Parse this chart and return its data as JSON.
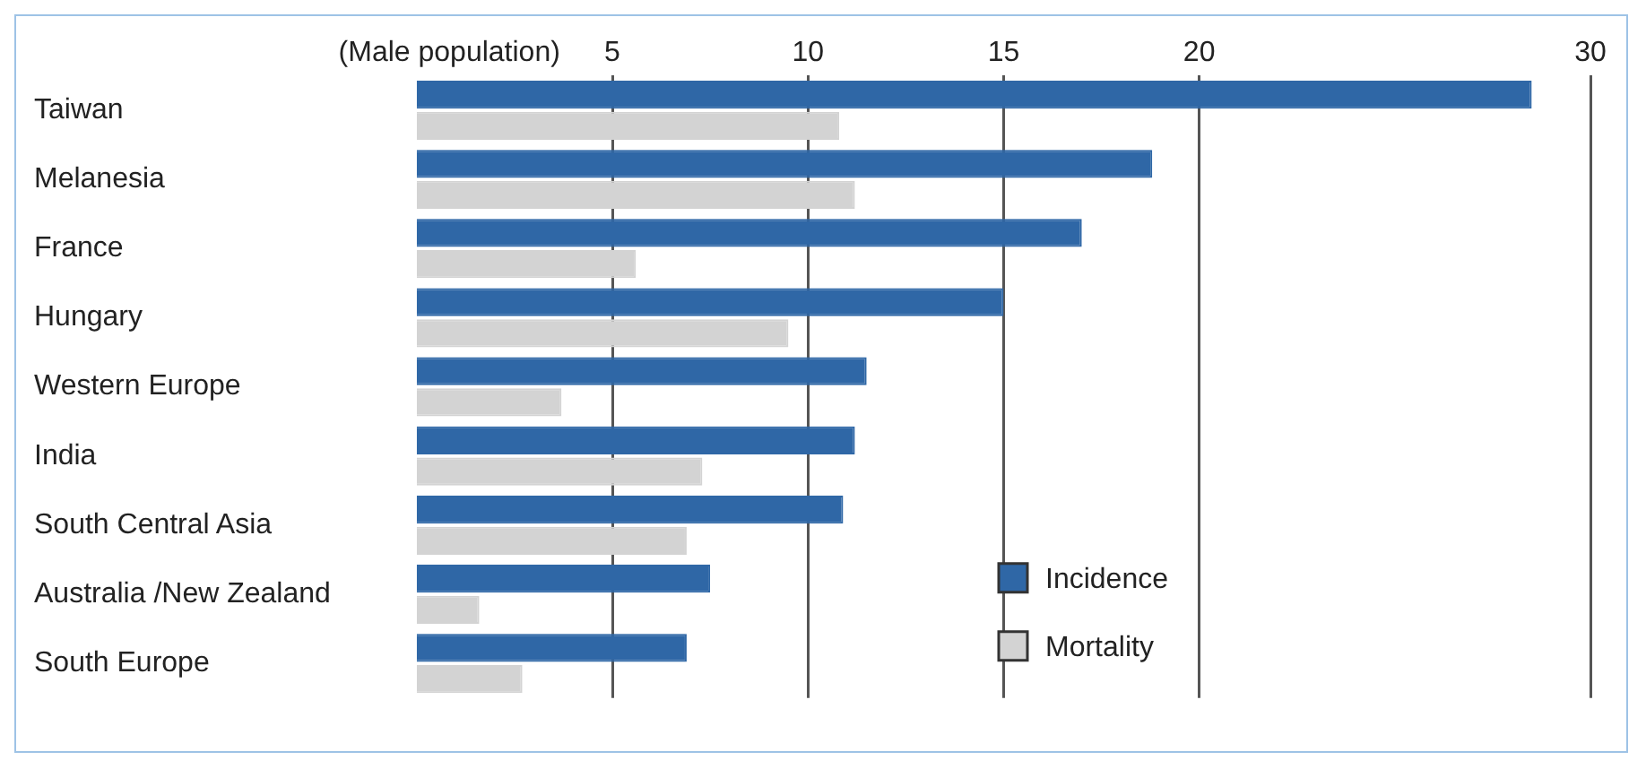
{
  "chart_data": {
    "type": "bar",
    "orientation": "horizontal",
    "xlabel": "(Male population)",
    "categories": [
      "Taiwan",
      "Melanesia",
      "France",
      "Hungary",
      "Western Europe",
      "India",
      "South Central Asia",
      "Australia /New Zealand",
      "South Europe"
    ],
    "series": [
      {
        "name": "Incidence",
        "color": "#2f67a6",
        "values": [
          28.5,
          18.8,
          17.0,
          15.0,
          11.5,
          11.2,
          10.9,
          7.5,
          6.9
        ]
      },
      {
        "name": "Mortality",
        "color": "#d3d3d3",
        "values": [
          10.8,
          11.2,
          5.6,
          9.5,
          3.7,
          7.3,
          6.9,
          1.6,
          2.7
        ]
      }
    ],
    "xlim": [
      0,
      30
    ],
    "xticks": [
      5,
      10,
      15,
      20,
      30
    ],
    "grid": "x",
    "legend": "bottom right"
  }
}
